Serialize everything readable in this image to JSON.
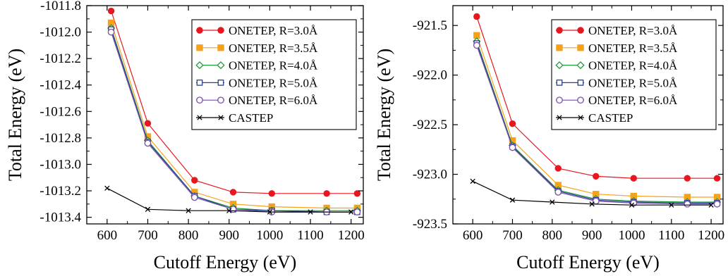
{
  "chart_data": [
    {
      "type": "line",
      "title": "",
      "xlabel": "Cutoff Energy (eV)",
      "ylabel": "Total Energy (eV)",
      "xlim": [
        550,
        1230
      ],
      "ylim": [
        -1013.45,
        -1011.8
      ],
      "xticks": [
        600,
        700,
        800,
        900,
        1000,
        1100,
        1200
      ],
      "xtick_labels": [
        "600",
        "700",
        "800",
        "900",
        "1000",
        "1100",
        "1200"
      ],
      "yticks": [
        -1011.8,
        -1012.0,
        -1012.2,
        -1012.4,
        -1012.6,
        -1012.8,
        -1013.0,
        -1013.2,
        -1013.4
      ],
      "ytick_labels": [
        "-1011.8",
        "-1012.0",
        "-1012.2",
        "-1012.4",
        "-1012.6",
        "-1012.8",
        "-1013.0",
        "-1013.2",
        "-1013.4"
      ],
      "grid": false,
      "legend_position": "top-right",
      "series": [
        {
          "name": "ONETEP, R=3.0Å",
          "color": "#e8171f",
          "marker": "filled-circle",
          "x": [
            610,
            700,
            815,
            910,
            1005,
            1140,
            1215
          ],
          "y": [
            -1011.84,
            -1012.69,
            -1013.12,
            -1013.21,
            -1013.22,
            -1013.22,
            -1013.22
          ]
        },
        {
          "name": "ONETEP, R=3.5Å",
          "color": "#f4a21b",
          "marker": "filled-square",
          "x": [
            610,
            700,
            815,
            910,
            1005,
            1140,
            1215
          ],
          "y": [
            -1011.93,
            -1012.79,
            -1013.21,
            -1013.3,
            -1013.32,
            -1013.33,
            -1013.33
          ]
        },
        {
          "name": "ONETEP, R=4.0Å",
          "color": "#1f9a3a",
          "marker": "open-diamond",
          "x": [
            610,
            700,
            815,
            910,
            1005,
            1140,
            1215
          ],
          "y": [
            -1011.97,
            -1012.82,
            -1013.24,
            -1013.33,
            -1013.35,
            -1013.35,
            -1013.35
          ]
        },
        {
          "name": "ONETEP, R=5.0Å",
          "color": "#2b3d97",
          "marker": "open-square",
          "x": [
            610,
            700,
            815,
            910,
            1005,
            1140,
            1215
          ],
          "y": [
            -1011.98,
            -1012.83,
            -1013.24,
            -1013.34,
            -1013.35,
            -1013.36,
            -1013.36
          ]
        },
        {
          "name": "ONETEP, R=6.0Å",
          "color": "#7a4fa8",
          "marker": "open-circle",
          "x": [
            610,
            700,
            815,
            910,
            1005,
            1140,
            1215
          ],
          "y": [
            -1012.0,
            -1012.84,
            -1013.25,
            -1013.34,
            -1013.36,
            -1013.36,
            -1013.36
          ]
        },
        {
          "name": "CASTEP",
          "color": "#000000",
          "marker": "x",
          "x": [
            600,
            700,
            800,
            900,
            1000,
            1100,
            1200
          ],
          "y": [
            -1013.18,
            -1013.34,
            -1013.35,
            -1013.35,
            -1013.36,
            -1013.36,
            -1013.36
          ]
        }
      ]
    },
    {
      "type": "line",
      "title": "",
      "xlabel": "Cutoff Energy (eV)",
      "ylabel": "Total Energy (eV)",
      "xlim": [
        550,
        1230
      ],
      "ylim": [
        -923.5,
        -921.3
      ],
      "xticks": [
        600,
        700,
        800,
        900,
        1000,
        1100,
        1200
      ],
      "xtick_labels": [
        "600",
        "700",
        "800",
        "900",
        "1000",
        "1100",
        "1200"
      ],
      "yticks": [
        -921.5,
        -922.0,
        -922.5,
        -923.0,
        -923.5
      ],
      "ytick_labels": [
        "-921.5",
        "-922.0",
        "-922.5",
        "-923.0",
        "-923.5"
      ],
      "grid": false,
      "legend_position": "top-right",
      "series": [
        {
          "name": "ONETEP, R=3.0Å",
          "color": "#e8171f",
          "marker": "filled-circle",
          "x": [
            610,
            700,
            815,
            910,
            1005,
            1140,
            1215
          ],
          "y": [
            -921.41,
            -922.49,
            -922.94,
            -923.02,
            -923.04,
            -923.04,
            -923.04
          ]
        },
        {
          "name": "ONETEP, R=3.5Å",
          "color": "#f4a21b",
          "marker": "filled-square",
          "x": [
            610,
            700,
            815,
            910,
            1005,
            1140,
            1215
          ],
          "y": [
            -921.6,
            -922.66,
            -923.11,
            -923.2,
            -923.22,
            -923.23,
            -923.23
          ]
        },
        {
          "name": "ONETEP, R=4.0Å",
          "color": "#1f9a3a",
          "marker": "open-diamond",
          "x": [
            610,
            700,
            815,
            910,
            1005,
            1140,
            1215
          ],
          "y": [
            -921.66,
            -922.71,
            -923.16,
            -923.25,
            -923.27,
            -923.28,
            -923.28
          ]
        },
        {
          "name": "ONETEP, R=5.0Å",
          "color": "#2b3d97",
          "marker": "open-square",
          "x": [
            610,
            700,
            815,
            910,
            1005,
            1140,
            1215
          ],
          "y": [
            -921.68,
            -922.72,
            -923.17,
            -923.26,
            -923.28,
            -923.29,
            -923.29
          ]
        },
        {
          "name": "ONETEP, R=6.0Å",
          "color": "#7a4fa8",
          "marker": "open-circle",
          "x": [
            610,
            700,
            815,
            910,
            1005,
            1140,
            1215
          ],
          "y": [
            -921.7,
            -922.73,
            -923.18,
            -923.27,
            -923.29,
            -923.3,
            -923.3
          ]
        },
        {
          "name": "CASTEP",
          "color": "#000000",
          "marker": "x",
          "x": [
            600,
            700,
            800,
            900,
            1000,
            1100,
            1200
          ],
          "y": [
            -923.07,
            -923.26,
            -923.28,
            -923.3,
            -923.31,
            -923.31,
            -923.31
          ]
        }
      ]
    }
  ]
}
